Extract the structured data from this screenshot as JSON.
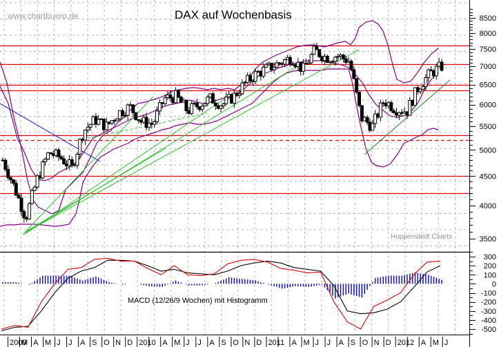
{
  "header": {
    "title": "DAX auf Wochenbasis",
    "watermark": "www.chartbuero.de",
    "source_note": "Hoppenstedt Charts"
  },
  "colors": {
    "candle_up": "#ffffff",
    "candle_down": "#000000",
    "bollinger": "#800080",
    "horizontal_lines": "#e00000",
    "trend_green": "#00bb00",
    "trend_blue": "#0000cc",
    "macd_line": "#000000",
    "signal_line": "#e00000",
    "histogram": "#0000cc",
    "grid": "#b0b0b0"
  },
  "chart_data": [
    {
      "type": "candlestick",
      "title": "DAX auf Wochenbasis",
      "xlabel": "",
      "ylabel": "",
      "scale": "log",
      "ylim": [
        3300,
        8800
      ],
      "y_ticks": [
        3500,
        4000,
        4500,
        5000,
        5500,
        6000,
        6500,
        7000,
        7500,
        8000,
        8500
      ],
      "x_ticks": [
        "2009",
        "M",
        "A",
        "M",
        "J",
        "J",
        "A",
        "S",
        "O",
        "N",
        "D",
        "2010",
        "",
        "A",
        "M",
        "J",
        "J",
        "A",
        "S",
        "O",
        "N",
        "D",
        "2011",
        "",
        "A",
        "M",
        "J",
        "J",
        "A",
        "S",
        "O",
        "N",
        "D",
        "2012",
        "",
        "A",
        "M",
        "J"
      ],
      "grid": true,
      "weekly_close_approx": {
        "x": [
          "2009-01",
          "2009-02",
          "2009-03",
          "2009-04",
          "2009-05",
          "2009-06",
          "2009-07",
          "2009-08",
          "2009-09",
          "2009-10",
          "2009-11",
          "2009-12",
          "2010-01",
          "2010-02",
          "2010-03",
          "2010-04",
          "2010-05",
          "2010-06",
          "2010-07",
          "2010-08",
          "2010-09",
          "2010-10",
          "2010-11",
          "2010-12",
          "2011-01",
          "2011-02",
          "2011-03",
          "2011-04",
          "2011-05",
          "2011-06",
          "2011-07",
          "2011-08",
          "2011-09",
          "2011-10",
          "2011-11",
          "2011-12",
          "2012-01",
          "2012-02",
          "2012-03"
        ],
        "values": [
          4800,
          4300,
          3800,
          4450,
          4950,
          4850,
          4650,
          5400,
          5650,
          5500,
          5800,
          5950,
          5600,
          5550,
          6150,
          6200,
          5850,
          6000,
          6150,
          6000,
          6200,
          6550,
          6800,
          6950,
          7100,
          7250,
          6900,
          7450,
          7250,
          7300,
          7150,
          5700,
          5500,
          6100,
          5900,
          5850,
          6450,
          6800,
          7000
        ]
      },
      "horizontal_lines": [
        {
          "value": 7600,
          "style": "solid",
          "color": "red"
        },
        {
          "value": 7050,
          "style": "solid",
          "color": "red"
        },
        {
          "value": 6500,
          "style": "solid",
          "color": "red"
        },
        {
          "value": 6350,
          "style": "solid",
          "color": "red"
        },
        {
          "value": 5300,
          "style": "solid",
          "color": "red"
        },
        {
          "value": 5200,
          "style": "dashed",
          "color": "red"
        },
        {
          "value": 4500,
          "style": "solid",
          "color": "red"
        },
        {
          "value": 4200,
          "style": "solid",
          "color": "red"
        }
      ],
      "indicators": [
        "Bollinger Bands",
        "Trendlinien"
      ]
    },
    {
      "type": "line",
      "title": "MACD (12/26/9 Wochen) mit Histogramm",
      "ylim": [
        -600,
        350
      ],
      "y_ticks": [
        300,
        200,
        100,
        0,
        -100,
        -200,
        -300,
        -400,
        -500
      ],
      "series": [
        {
          "name": "MACD",
          "color": "black",
          "values": [
            -520,
            -480,
            -470,
            -300,
            -100,
            60,
            140,
            180,
            260,
            260,
            250,
            200,
            140,
            160,
            120,
            110,
            100,
            140,
            200,
            230,
            250,
            230,
            180,
            160,
            140,
            -20,
            -300,
            -330,
            -320,
            -280,
            -200,
            -40,
            130,
            200
          ]
        },
        {
          "name": "Signal",
          "color": "red",
          "values": [
            -500,
            -460,
            -480,
            -200,
            0,
            160,
            180,
            270,
            280,
            250,
            250,
            170,
            100,
            200,
            100,
            90,
            110,
            220,
            260,
            270,
            240,
            170,
            150,
            120,
            130,
            -200,
            -420,
            -500,
            -250,
            -180,
            -100,
            100,
            240,
            250
          ]
        }
      ]
    }
  ]
}
